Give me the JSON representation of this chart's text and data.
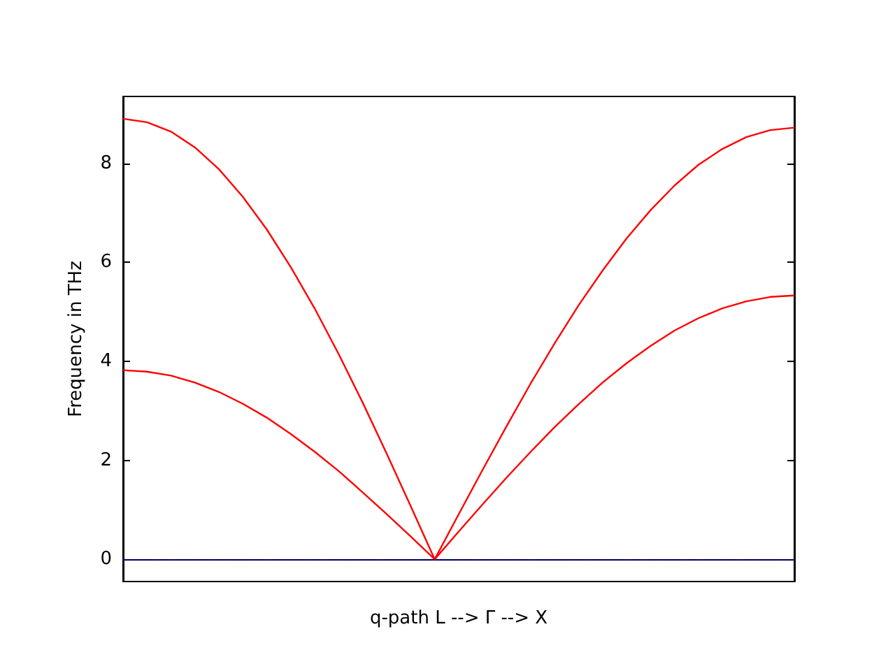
{
  "chart_data": {
    "type": "line",
    "xlabel": "q-path L --> Γ --> X",
    "ylabel": "Frequency in THz",
    "categories": [
      null,
      null,
      null,
      null,
      null,
      null,
      null,
      null,
      null,
      null,
      null,
      null,
      null,
      null,
      null,
      null,
      null,
      null,
      null,
      null,
      null,
      null,
      null,
      null,
      null,
      null,
      null,
      null,
      null
    ],
    "series": [
      {
        "color": "#ff0000",
        "values": [
          8.9,
          8.83,
          8.64,
          8.32,
          7.88,
          7.32,
          6.66,
          5.9,
          5.06,
          4.14,
          3.16,
          2.13,
          1.07,
          0,
          0.91,
          1.81,
          2.69,
          3.55,
          4.36,
          5.13,
          5.83,
          6.48,
          7.05,
          7.55,
          7.97,
          8.29,
          8.53,
          8.67,
          8.72
        ]
      },
      {
        "color": "#ff0000",
        "values": [
          3.82,
          3.79,
          3.71,
          3.57,
          3.38,
          3.14,
          2.86,
          2.53,
          2.17,
          1.78,
          1.35,
          0.91,
          0.46,
          0,
          0.56,
          1.11,
          1.65,
          2.17,
          2.67,
          3.13,
          3.57,
          3.96,
          4.31,
          4.62,
          4.87,
          5.07,
          5.21,
          5.3,
          5.33
        ]
      }
    ],
    "ylim": [
      -0.45,
      9.35
    ],
    "yticks": [
      0,
      2,
      4,
      6,
      8
    ],
    "grid": false,
    "marker": "none",
    "line_style": "solid",
    "ref_lines": [
      {
        "axis": "y",
        "value": 0,
        "color": "#0000ff",
        "line_style": "dotted"
      }
    ]
  }
}
